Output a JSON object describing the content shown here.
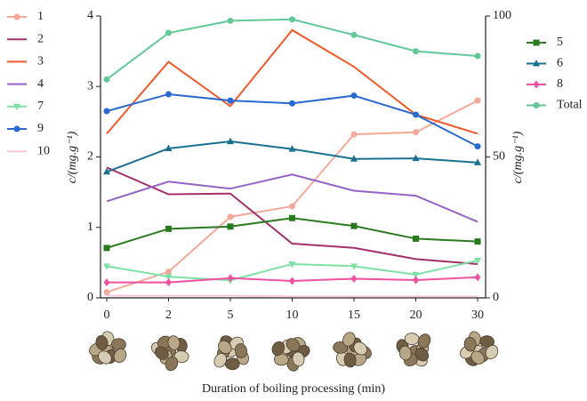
{
  "chart_data": {
    "type": "line",
    "x_label": "Duration of boiling processing (min)",
    "y_label": "c/(mg.g⁻¹)",
    "y2_label": "c/(mg.g⁻¹)",
    "categories": [
      "0",
      "2",
      "5",
      "10",
      "15",
      "20",
      "30"
    ],
    "ylim": [
      0,
      4
    ],
    "yticks": [
      0,
      1,
      2,
      3,
      4
    ],
    "y2lim": [
      0,
      100
    ],
    "y2ticks": [
      0,
      50,
      100
    ],
    "series": [
      {
        "name": "1",
        "color": "#f4a898",
        "marker": "circle",
        "values": [
          0.08,
          0.37,
          1.15,
          1.3,
          2.32,
          2.35,
          2.8
        ]
      },
      {
        "name": "2",
        "color": "#a2306a",
        "marker": "none",
        "values": [
          1.85,
          1.47,
          1.48,
          0.77,
          0.71,
          0.55,
          0.48
        ]
      },
      {
        "name": "3",
        "color": "#f05a2a",
        "marker": "none",
        "values": [
          2.33,
          3.35,
          2.72,
          3.8,
          3.28,
          2.6,
          2.33
        ]
      },
      {
        "name": "4",
        "color": "#9563c6",
        "marker": "none",
        "values": [
          1.37,
          1.65,
          1.55,
          1.75,
          1.52,
          1.45,
          1.08
        ]
      },
      {
        "name": "7",
        "color": "#7ee0a4",
        "marker": "triangle-down",
        "values": [
          0.45,
          0.3,
          0.25,
          0.48,
          0.45,
          0.33,
          0.53
        ]
      },
      {
        "name": "9",
        "color": "#2a6ad0",
        "marker": "circle",
        "values": [
          2.65,
          2.89,
          2.8,
          2.76,
          2.87,
          2.6,
          2.15
        ]
      },
      {
        "name": "10",
        "color": "#f8c8d8",
        "marker": "none",
        "values": [
          0.03,
          0.03,
          0.03,
          0.02,
          0.02,
          0.02,
          0.02
        ]
      },
      {
        "name": "5",
        "color": "#2a7a20",
        "marker": "square",
        "axis": "y2",
        "values": [
          17.7,
          24.5,
          25.3,
          28.3,
          25.5,
          21,
          20
        ]
      },
      {
        "name": "6",
        "color": "#1a7090",
        "marker": "triangle",
        "axis": "y2",
        "values": [
          44.7,
          53,
          55.5,
          52.8,
          49.3,
          49.5,
          48
        ]
      },
      {
        "name": "8",
        "color": "#f050a0",
        "marker": "diamond",
        "axis": "y2",
        "values": [
          5.5,
          5.5,
          7,
          6,
          6.8,
          6.3,
          7.3
        ]
      },
      {
        "name": "Total",
        "color": "#62c898",
        "marker": "circle",
        "axis": "y2",
        "values": [
          77.5,
          94,
          98.3,
          98.8,
          93.3,
          87.5,
          85.8
        ]
      }
    ]
  }
}
